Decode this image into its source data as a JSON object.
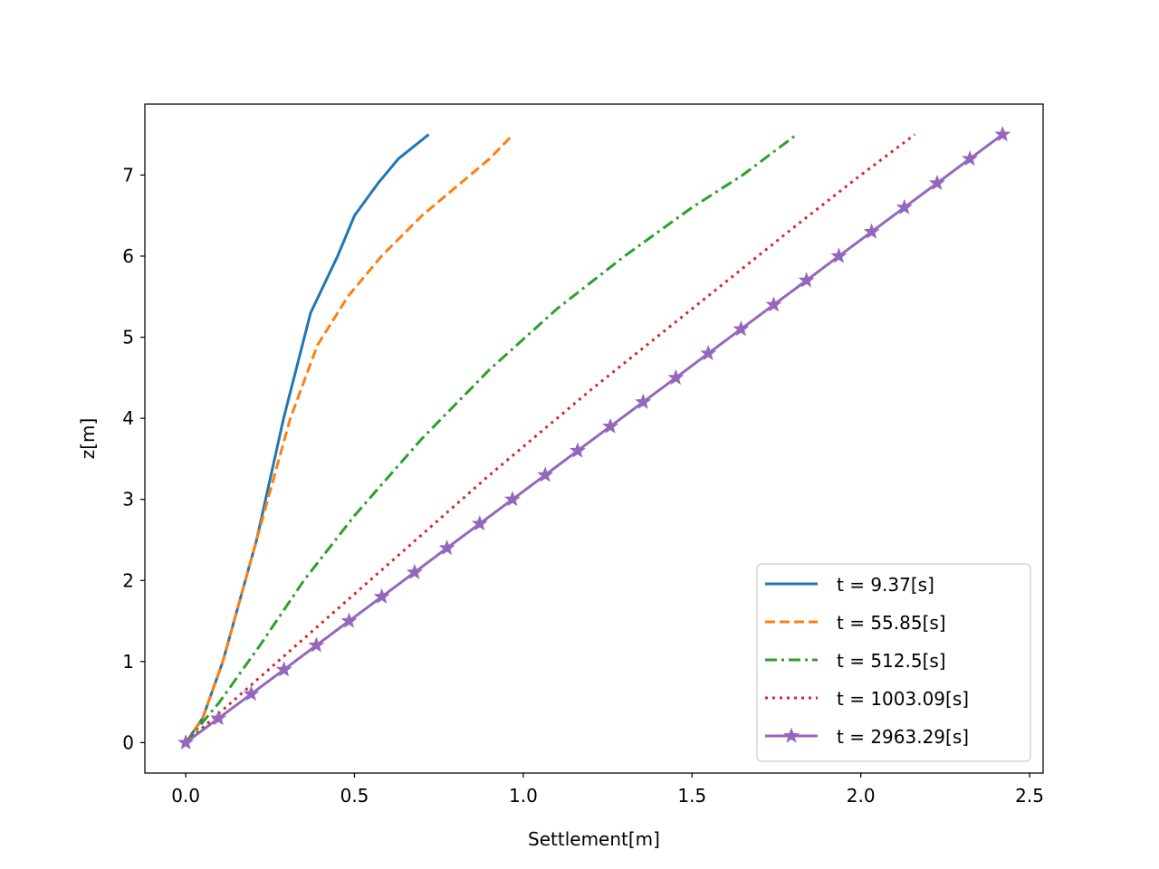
{
  "chart_data": {
    "type": "line",
    "title": "",
    "xlabel": "Settlement[m]",
    "ylabel": "z[m]",
    "xlim": [
      -0.121,
      2.54
    ],
    "ylim": [
      -0.375,
      7.875
    ],
    "xticks": [
      "0.0",
      "0.5",
      "1.0",
      "1.5",
      "2.0",
      "2.5"
    ],
    "yticks": [
      "0",
      "1",
      "2",
      "3",
      "4",
      "5",
      "6",
      "7"
    ],
    "grid": false,
    "legend_position": "lower-right",
    "series": [
      {
        "name": "t = 9.37[s]",
        "color": "#1f77b4",
        "style": "solid",
        "marker": "none",
        "points": [
          [
            0,
            0
          ],
          [
            0.05,
            0.3
          ],
          [
            0.11,
            1.0
          ],
          [
            0.21,
            2.5
          ],
          [
            0.29,
            4.0
          ],
          [
            0.37,
            5.3
          ],
          [
            0.45,
            6.0
          ],
          [
            0.5,
            6.5
          ],
          [
            0.57,
            6.9
          ],
          [
            0.63,
            7.2
          ],
          [
            0.72,
            7.5
          ]
        ]
      },
      {
        "name": "t = 55.85[s]",
        "color": "#ff7f0e",
        "style": "dashed",
        "marker": "none",
        "points": [
          [
            0,
            0
          ],
          [
            0.05,
            0.3
          ],
          [
            0.11,
            1.0
          ],
          [
            0.21,
            2.5
          ],
          [
            0.31,
            4.0
          ],
          [
            0.39,
            4.9
          ],
          [
            0.48,
            5.5
          ],
          [
            0.58,
            6.0
          ],
          [
            0.7,
            6.5
          ],
          [
            0.8,
            6.85
          ],
          [
            0.9,
            7.2
          ],
          [
            0.97,
            7.5
          ]
        ]
      },
      {
        "name": "t = 512.5[s]",
        "color": "#2ca02c",
        "style": "dashdot",
        "marker": "none",
        "points": [
          [
            0,
            0
          ],
          [
            0.1,
            0.5
          ],
          [
            0.22,
            1.2
          ],
          [
            0.35,
            2.0
          ],
          [
            0.5,
            2.8
          ],
          [
            0.7,
            3.75
          ],
          [
            0.9,
            4.6
          ],
          [
            1.1,
            5.35
          ],
          [
            1.3,
            6.0
          ],
          [
            1.5,
            6.6
          ],
          [
            1.65,
            7.0
          ],
          [
            1.81,
            7.5
          ]
        ]
      },
      {
        "name": "t = 1003.09[s]",
        "color": "#d62728",
        "style": "dotted",
        "marker": "none",
        "points": [
          [
            0,
            0
          ],
          [
            0.3,
            1.1
          ],
          [
            0.6,
            2.2
          ],
          [
            0.9,
            3.3
          ],
          [
            1.2,
            4.35
          ],
          [
            1.5,
            5.35
          ],
          [
            1.8,
            6.35
          ],
          [
            2.0,
            7.0
          ],
          [
            2.16,
            7.5
          ]
        ]
      },
      {
        "name": "t = 2963.29[s]",
        "color": "#9467bd",
        "style": "solid",
        "marker": "star",
        "points": [
          [
            0.0,
            0.0
          ],
          [
            0.097,
            0.3
          ],
          [
            0.194,
            0.6
          ],
          [
            0.291,
            0.9
          ],
          [
            0.387,
            1.2
          ],
          [
            0.484,
            1.5
          ],
          [
            0.581,
            1.8
          ],
          [
            0.678,
            2.1
          ],
          [
            0.774,
            2.4
          ],
          [
            0.871,
            2.7
          ],
          [
            0.968,
            3.0
          ],
          [
            1.065,
            3.3
          ],
          [
            1.161,
            3.6
          ],
          [
            1.258,
            3.9
          ],
          [
            1.355,
            4.2
          ],
          [
            1.452,
            4.5
          ],
          [
            1.548,
            4.8
          ],
          [
            1.645,
            5.1
          ],
          [
            1.742,
            5.4
          ],
          [
            1.839,
            5.7
          ],
          [
            1.935,
            6.0
          ],
          [
            2.032,
            6.3
          ],
          [
            2.129,
            6.6
          ],
          [
            2.226,
            6.9
          ],
          [
            2.323,
            7.2
          ],
          [
            2.42,
            7.5
          ]
        ]
      }
    ]
  }
}
